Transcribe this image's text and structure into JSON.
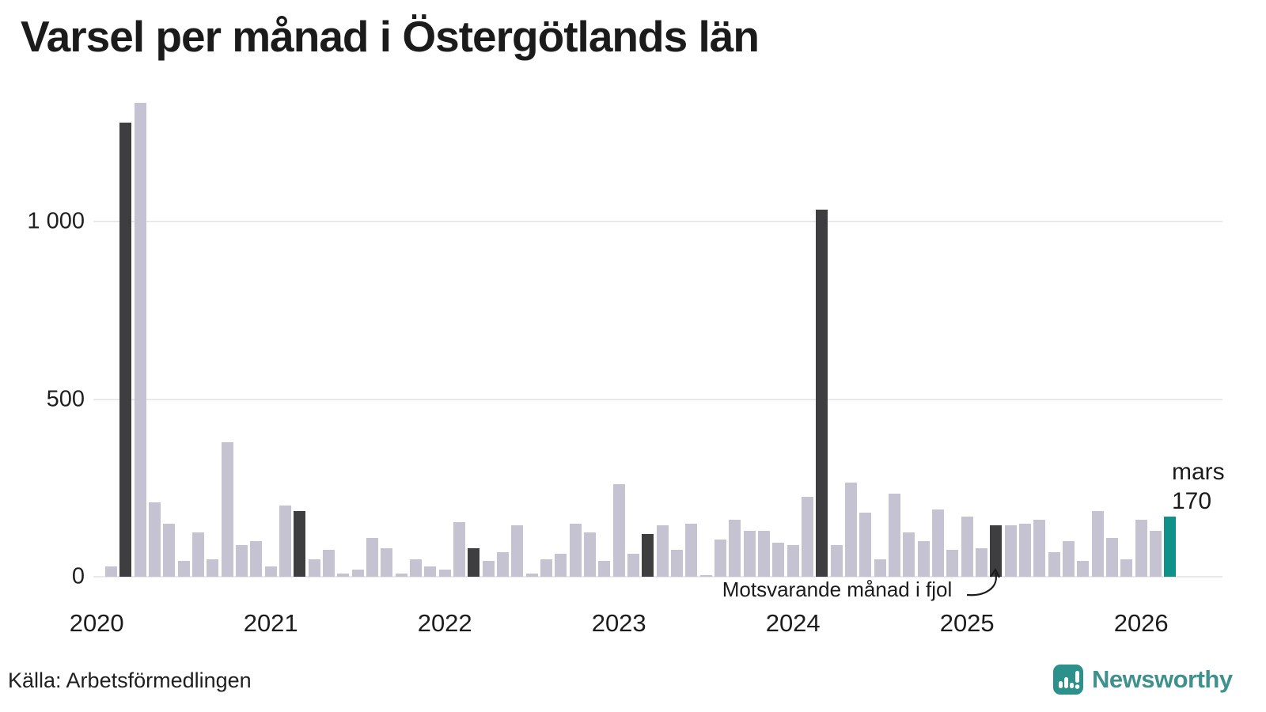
{
  "title": "Varsel per månad i Östergötlands län",
  "source": "Källa: Arbetsförmedlingen",
  "branding": {
    "name": "Newsworthy"
  },
  "annotation": {
    "text": "Motsvarande månad i fjol"
  },
  "last_point_label": {
    "line1": "mars",
    "line2": "170"
  },
  "colors": {
    "bar_normal": "#c5c3d1",
    "bar_highlight": "#3e3d40",
    "bar_current": "#0f928a",
    "gridline": "#e9e8ee",
    "brand_teal": "#3f918d",
    "brand_icon_bg": "#2c918a"
  },
  "chart_data": {
    "type": "bar",
    "title": "Varsel per månad i Östergötlands län",
    "xlabel": "",
    "ylabel": "",
    "ylim": [
      0,
      1360
    ],
    "grid": "horizontal",
    "y_ticks": [
      {
        "value": 0,
        "label": "0"
      },
      {
        "value": 500,
        "label": "500"
      },
      {
        "value": 1000,
        "label": "1 000"
      }
    ],
    "x_ticks": [
      "2020",
      "2021",
      "2022",
      "2023",
      "2024",
      "2025",
      "2026"
    ],
    "highlight_meaning": "Motsvarande månad i fjol (mars varje år)",
    "current_meaning": "mars 2026 = 170",
    "months": [
      {
        "month": "2020-02",
        "value": 30
      },
      {
        "month": "2020-03",
        "value": 1280,
        "highlight": true
      },
      {
        "month": "2020-04",
        "value": 1335
      },
      {
        "month": "2020-05",
        "value": 210
      },
      {
        "month": "2020-06",
        "value": 150
      },
      {
        "month": "2020-07",
        "value": 45
      },
      {
        "month": "2020-08",
        "value": 125
      },
      {
        "month": "2020-09",
        "value": 50
      },
      {
        "month": "2020-10",
        "value": 380
      },
      {
        "month": "2020-11",
        "value": 90
      },
      {
        "month": "2020-12",
        "value": 100
      },
      {
        "month": "2021-01",
        "value": 30
      },
      {
        "month": "2021-02",
        "value": 200
      },
      {
        "month": "2021-03",
        "value": 185,
        "highlight": true
      },
      {
        "month": "2021-04",
        "value": 50
      },
      {
        "month": "2021-05",
        "value": 75
      },
      {
        "month": "2021-06",
        "value": 10
      },
      {
        "month": "2021-07",
        "value": 20
      },
      {
        "month": "2021-08",
        "value": 110
      },
      {
        "month": "2021-09",
        "value": 80
      },
      {
        "month": "2021-10",
        "value": 10
      },
      {
        "month": "2021-11",
        "value": 50
      },
      {
        "month": "2021-12",
        "value": 30
      },
      {
        "month": "2022-01",
        "value": 20
      },
      {
        "month": "2022-02",
        "value": 155
      },
      {
        "month": "2022-03",
        "value": 80,
        "highlight": true
      },
      {
        "month": "2022-04",
        "value": 45
      },
      {
        "month": "2022-05",
        "value": 70
      },
      {
        "month": "2022-06",
        "value": 145
      },
      {
        "month": "2022-07",
        "value": 10
      },
      {
        "month": "2022-08",
        "value": 50
      },
      {
        "month": "2022-09",
        "value": 65
      },
      {
        "month": "2022-10",
        "value": 150
      },
      {
        "month": "2022-11",
        "value": 125
      },
      {
        "month": "2022-12",
        "value": 45
      },
      {
        "month": "2023-01",
        "value": 260
      },
      {
        "month": "2023-02",
        "value": 65
      },
      {
        "month": "2023-03",
        "value": 120,
        "highlight": true
      },
      {
        "month": "2023-04",
        "value": 145
      },
      {
        "month": "2023-05",
        "value": 75
      },
      {
        "month": "2023-06",
        "value": 150
      },
      {
        "month": "2023-07",
        "value": 5
      },
      {
        "month": "2023-08",
        "value": 105
      },
      {
        "month": "2023-09",
        "value": 160
      },
      {
        "month": "2023-10",
        "value": 130
      },
      {
        "month": "2023-11",
        "value": 130
      },
      {
        "month": "2023-12",
        "value": 95
      },
      {
        "month": "2024-01",
        "value": 90
      },
      {
        "month": "2024-02",
        "value": 225
      },
      {
        "month": "2024-03",
        "value": 1035,
        "highlight": true
      },
      {
        "month": "2024-04",
        "value": 90
      },
      {
        "month": "2024-05",
        "value": 265
      },
      {
        "month": "2024-06",
        "value": 180
      },
      {
        "month": "2024-07",
        "value": 50
      },
      {
        "month": "2024-08",
        "value": 235
      },
      {
        "month": "2024-09",
        "value": 125
      },
      {
        "month": "2024-10",
        "value": 100
      },
      {
        "month": "2024-11",
        "value": 190
      },
      {
        "month": "2024-12",
        "value": 75
      },
      {
        "month": "2025-01",
        "value": 170
      },
      {
        "month": "2025-02",
        "value": 80
      },
      {
        "month": "2025-03",
        "value": 145,
        "highlight": true
      },
      {
        "month": "2025-04",
        "value": 145
      },
      {
        "month": "2025-05",
        "value": 150
      },
      {
        "month": "2025-06",
        "value": 160
      },
      {
        "month": "2025-07",
        "value": 70
      },
      {
        "month": "2025-08",
        "value": 100
      },
      {
        "month": "2025-09",
        "value": 45
      },
      {
        "month": "2025-10",
        "value": 185
      },
      {
        "month": "2025-11",
        "value": 110
      },
      {
        "month": "2025-12",
        "value": 50
      },
      {
        "month": "2026-01",
        "value": 160
      },
      {
        "month": "2026-02",
        "value": 130
      },
      {
        "month": "2026-03",
        "value": 170,
        "current": true
      }
    ]
  }
}
